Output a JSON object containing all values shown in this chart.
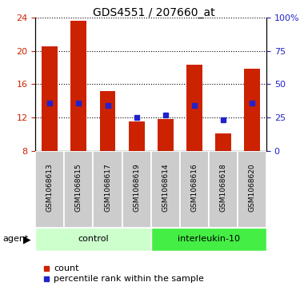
{
  "title": "GDS4551 / 207660_at",
  "samples": [
    "GSM1068613",
    "GSM1068615",
    "GSM1068617",
    "GSM1068619",
    "GSM1068614",
    "GSM1068616",
    "GSM1068618",
    "GSM1068620"
  ],
  "counts": [
    20.5,
    23.6,
    15.2,
    11.5,
    11.8,
    18.3,
    10.1,
    17.8
  ],
  "percentile_ranks": [
    36,
    36,
    34,
    25,
    27,
    34,
    23,
    36
  ],
  "groups": [
    {
      "label": "control",
      "indices": [
        0,
        1,
        2,
        3
      ]
    },
    {
      "label": "interleukin-10",
      "indices": [
        4,
        5,
        6,
        7
      ]
    }
  ],
  "ylim_left": [
    8,
    24
  ],
  "ylim_right": [
    0,
    100
  ],
  "yticks_left": [
    8,
    12,
    16,
    20,
    24
  ],
  "yticks_right": [
    0,
    25,
    50,
    75,
    100
  ],
  "ytick_labels_right": [
    "0",
    "25",
    "50",
    "75",
    "100%"
  ],
  "bar_color": "#cc2200",
  "marker_color": "#2222cc",
  "bar_bottom": 8,
  "sample_bg_color": "#cccccc",
  "control_color": "#ccffcc",
  "interleukin_color": "#44ee44",
  "agent_label": "agent",
  "legend_count": "count",
  "legend_percentile": "percentile rank within the sample"
}
